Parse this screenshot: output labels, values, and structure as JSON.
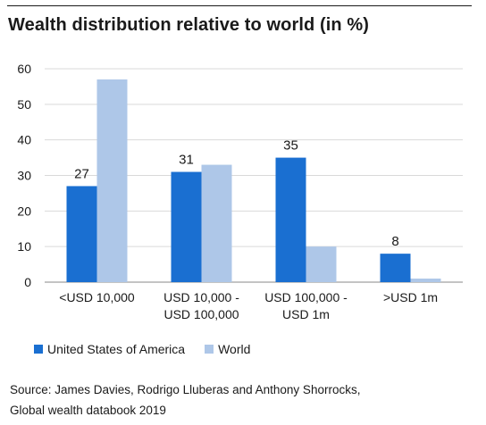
{
  "colors": {
    "usa": "#1a6fd1",
    "world": "#aec7e8",
    "grid": "#d9d9d9",
    "axis": "#888888"
  },
  "chart_data": {
    "type": "bar",
    "title": "Wealth distribution relative to world (in %)",
    "categories": [
      [
        "<USD 10,000"
      ],
      [
        "USD 10,000 -",
        "USD 100,000"
      ],
      [
        "USD 100,000 -",
        "USD 1m"
      ],
      [
        ">USD 1m"
      ]
    ],
    "series": [
      {
        "name": "United States of America",
        "values": [
          27,
          31,
          35,
          8
        ],
        "data_labels": [
          "27",
          "31",
          "35",
          "8"
        ]
      },
      {
        "name": "World",
        "values": [
          57,
          33,
          10,
          1
        ]
      }
    ],
    "ylim": [
      0,
      60
    ],
    "yticks": [
      0,
      10,
      20,
      30,
      40,
      50,
      60
    ],
    "grid": true,
    "legend_position": "bottom-left"
  },
  "source": {
    "line1": "Source: James Davies, Rodrigo Lluberas and Anthony Shorrocks,",
    "line2": "Global wealth databook 2019"
  }
}
